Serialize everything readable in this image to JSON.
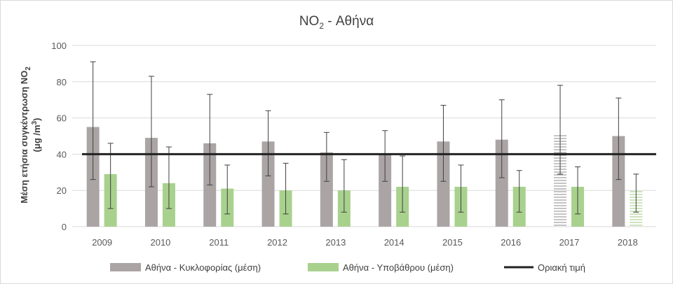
{
  "chart_data": {
    "type": "bar",
    "title": "NO",
    "title_sub": "2",
    "title_suffix": " - Αθήνα",
    "ylabel_line1": "Μέση ετήσια συγκέντρωση NO",
    "ylabel_line1_sub": "2",
    "ylabel_line2": "(μg /m",
    "ylabel_line2_sup": "3",
    "ylabel_line2_end": ")",
    "ylim": [
      0,
      100
    ],
    "yticks": [
      0,
      20,
      40,
      60,
      80,
      100
    ],
    "grid": true,
    "legend_position": "bottom",
    "categories": [
      "2009",
      "2010",
      "2011",
      "2012",
      "2013",
      "2014",
      "2015",
      "2016",
      "2017",
      "2018"
    ],
    "series": [
      {
        "name": "Αθήνα - Κυκλοφορίας (μέση)",
        "color": "#aaa4a5",
        "values": [
          55,
          49,
          46,
          47,
          41,
          40,
          47,
          48,
          51,
          50
        ],
        "err_low": [
          26,
          22,
          23,
          28,
          25,
          25,
          25,
          27,
          29,
          26
        ],
        "err_high": [
          91,
          83,
          73,
          64,
          52,
          53,
          67,
          70,
          78,
          71
        ],
        "hatched": [
          false,
          false,
          false,
          false,
          false,
          false,
          false,
          false,
          true,
          false
        ]
      },
      {
        "name": "Αθήνα - Υποβάθρου (μέση)",
        "color": "#a9d18e",
        "values": [
          29,
          24,
          21,
          20,
          20,
          22,
          22,
          22,
          22,
          20
        ],
        "err_low": [
          10,
          10,
          7,
          7,
          8,
          8,
          8,
          8,
          7,
          8
        ],
        "err_high": [
          46,
          44,
          34,
          35,
          37,
          39,
          34,
          31,
          33,
          29
        ],
        "hatched": [
          false,
          false,
          false,
          false,
          false,
          false,
          false,
          false,
          false,
          true
        ]
      }
    ],
    "reference_line": {
      "name": "Οριακή τιμή",
      "value": 40,
      "color": "#222222"
    }
  }
}
